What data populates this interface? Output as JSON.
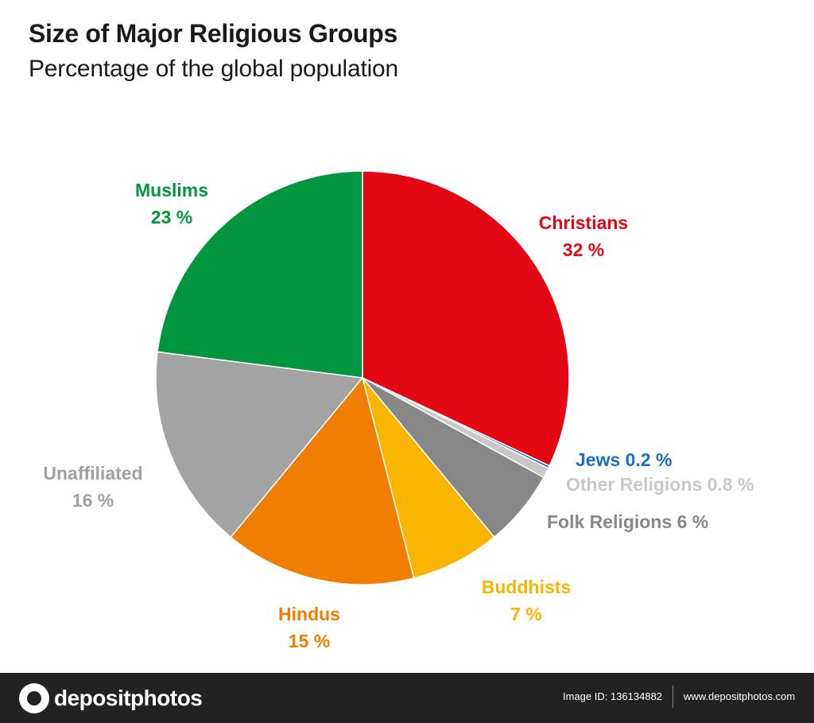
{
  "chart_data": {
    "type": "pie",
    "title": "Size of Major Religious Groups",
    "subtitle": "Percentage of the global population",
    "slices": [
      {
        "name": "Christians",
        "value": 32,
        "value_label": "32 %",
        "color": "#e30613",
        "label_lines": [
          "Christians",
          "32 %"
        ]
      },
      {
        "name": "Jews",
        "value": 0.2,
        "value_label": "0.2 %",
        "color": "#1a6fc4",
        "label_lines": [
          "Jews 0.2 %"
        ]
      },
      {
        "name": "Other Religions",
        "value": 0.8,
        "value_label": "0.8 %",
        "color": "#c8c8c8",
        "label_lines": [
          "Other Religions 0.8 %"
        ]
      },
      {
        "name": "Folk Religions",
        "value": 6,
        "value_label": "6 %",
        "color": "#878787",
        "label_lines": [
          "Folk Religions 6 %"
        ]
      },
      {
        "name": "Buddhists",
        "value": 7,
        "value_label": "7 %",
        "color": "#f7b500",
        "label_lines": [
          "Buddhists",
          "7 %"
        ]
      },
      {
        "name": "Hindus",
        "value": 15,
        "value_label": "15 %",
        "color": "#ee7d00",
        "label_lines": [
          "Hindus",
          "15 %"
        ]
      },
      {
        "name": "Unaffiliated",
        "value": 16,
        "value_label": "16 %",
        "color": "#a3a3a3",
        "label_color": "#a0a0a0",
        "label_lines": [
          "Unaffiliated",
          "16 %"
        ]
      },
      {
        "name": "Muslims",
        "value": 23,
        "value_label": "23 %",
        "color": "#009640",
        "label_lines": [
          "Muslims",
          "23 %"
        ]
      }
    ]
  },
  "footer": {
    "logo_text": "depositphotos",
    "image_id": "Image ID: 136134882",
    "site": "www.depositphotos.com"
  }
}
